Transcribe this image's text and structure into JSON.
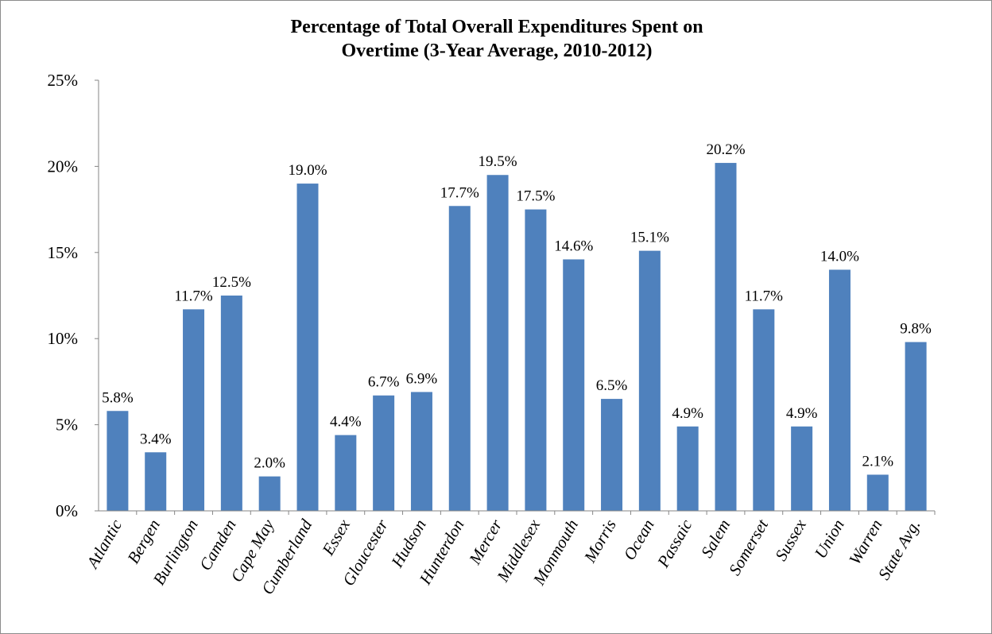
{
  "chart_data": {
    "type": "bar",
    "title_line1": "Percentage of Total Overall Expenditures Spent on",
    "title_line2": "Overtime  (3-Year Average, 2010-2012)",
    "xlabel": "",
    "ylabel": "",
    "categories": [
      "Atlantic",
      "Bergen",
      "Burlington",
      "Camden",
      "Cape May",
      "Cumberland",
      "Essex",
      "Gloucester",
      "Hudson",
      "Hunterdon",
      "Mercer",
      "Middlesex",
      "Monmouth",
      "Morris",
      "Ocean",
      "Passaic",
      "Salem",
      "Somerset",
      "Sussex",
      "Union",
      "Warren",
      "State Avg."
    ],
    "values": [
      5.8,
      3.4,
      11.7,
      12.5,
      2.0,
      19.0,
      4.4,
      6.7,
      6.9,
      17.7,
      19.5,
      17.5,
      14.6,
      6.5,
      15.1,
      4.9,
      20.2,
      11.7,
      4.9,
      14.0,
      2.1,
      9.8
    ],
    "data_labels": [
      "5.8%",
      "3.4%",
      "11.7%",
      "12.5%",
      "2.0%",
      "19.0%",
      "4.4%",
      "6.7%",
      "6.9%",
      "17.7%",
      "19.5%",
      "17.5%",
      "14.6%",
      "6.5%",
      "15.1%",
      "4.9%",
      "20.2%",
      "11.7%",
      "4.9%",
      "14.0%",
      "2.1%",
      "9.8%"
    ],
    "y_ticks": [
      0,
      5,
      10,
      15,
      20,
      25
    ],
    "y_tick_labels": [
      "0%",
      "5%",
      "10%",
      "15%",
      "20%",
      "25%"
    ],
    "ylim": [
      0,
      25
    ],
    "grid": false,
    "legend": "none",
    "bar_color": "#4f81bd",
    "axis_color": "#868686"
  }
}
